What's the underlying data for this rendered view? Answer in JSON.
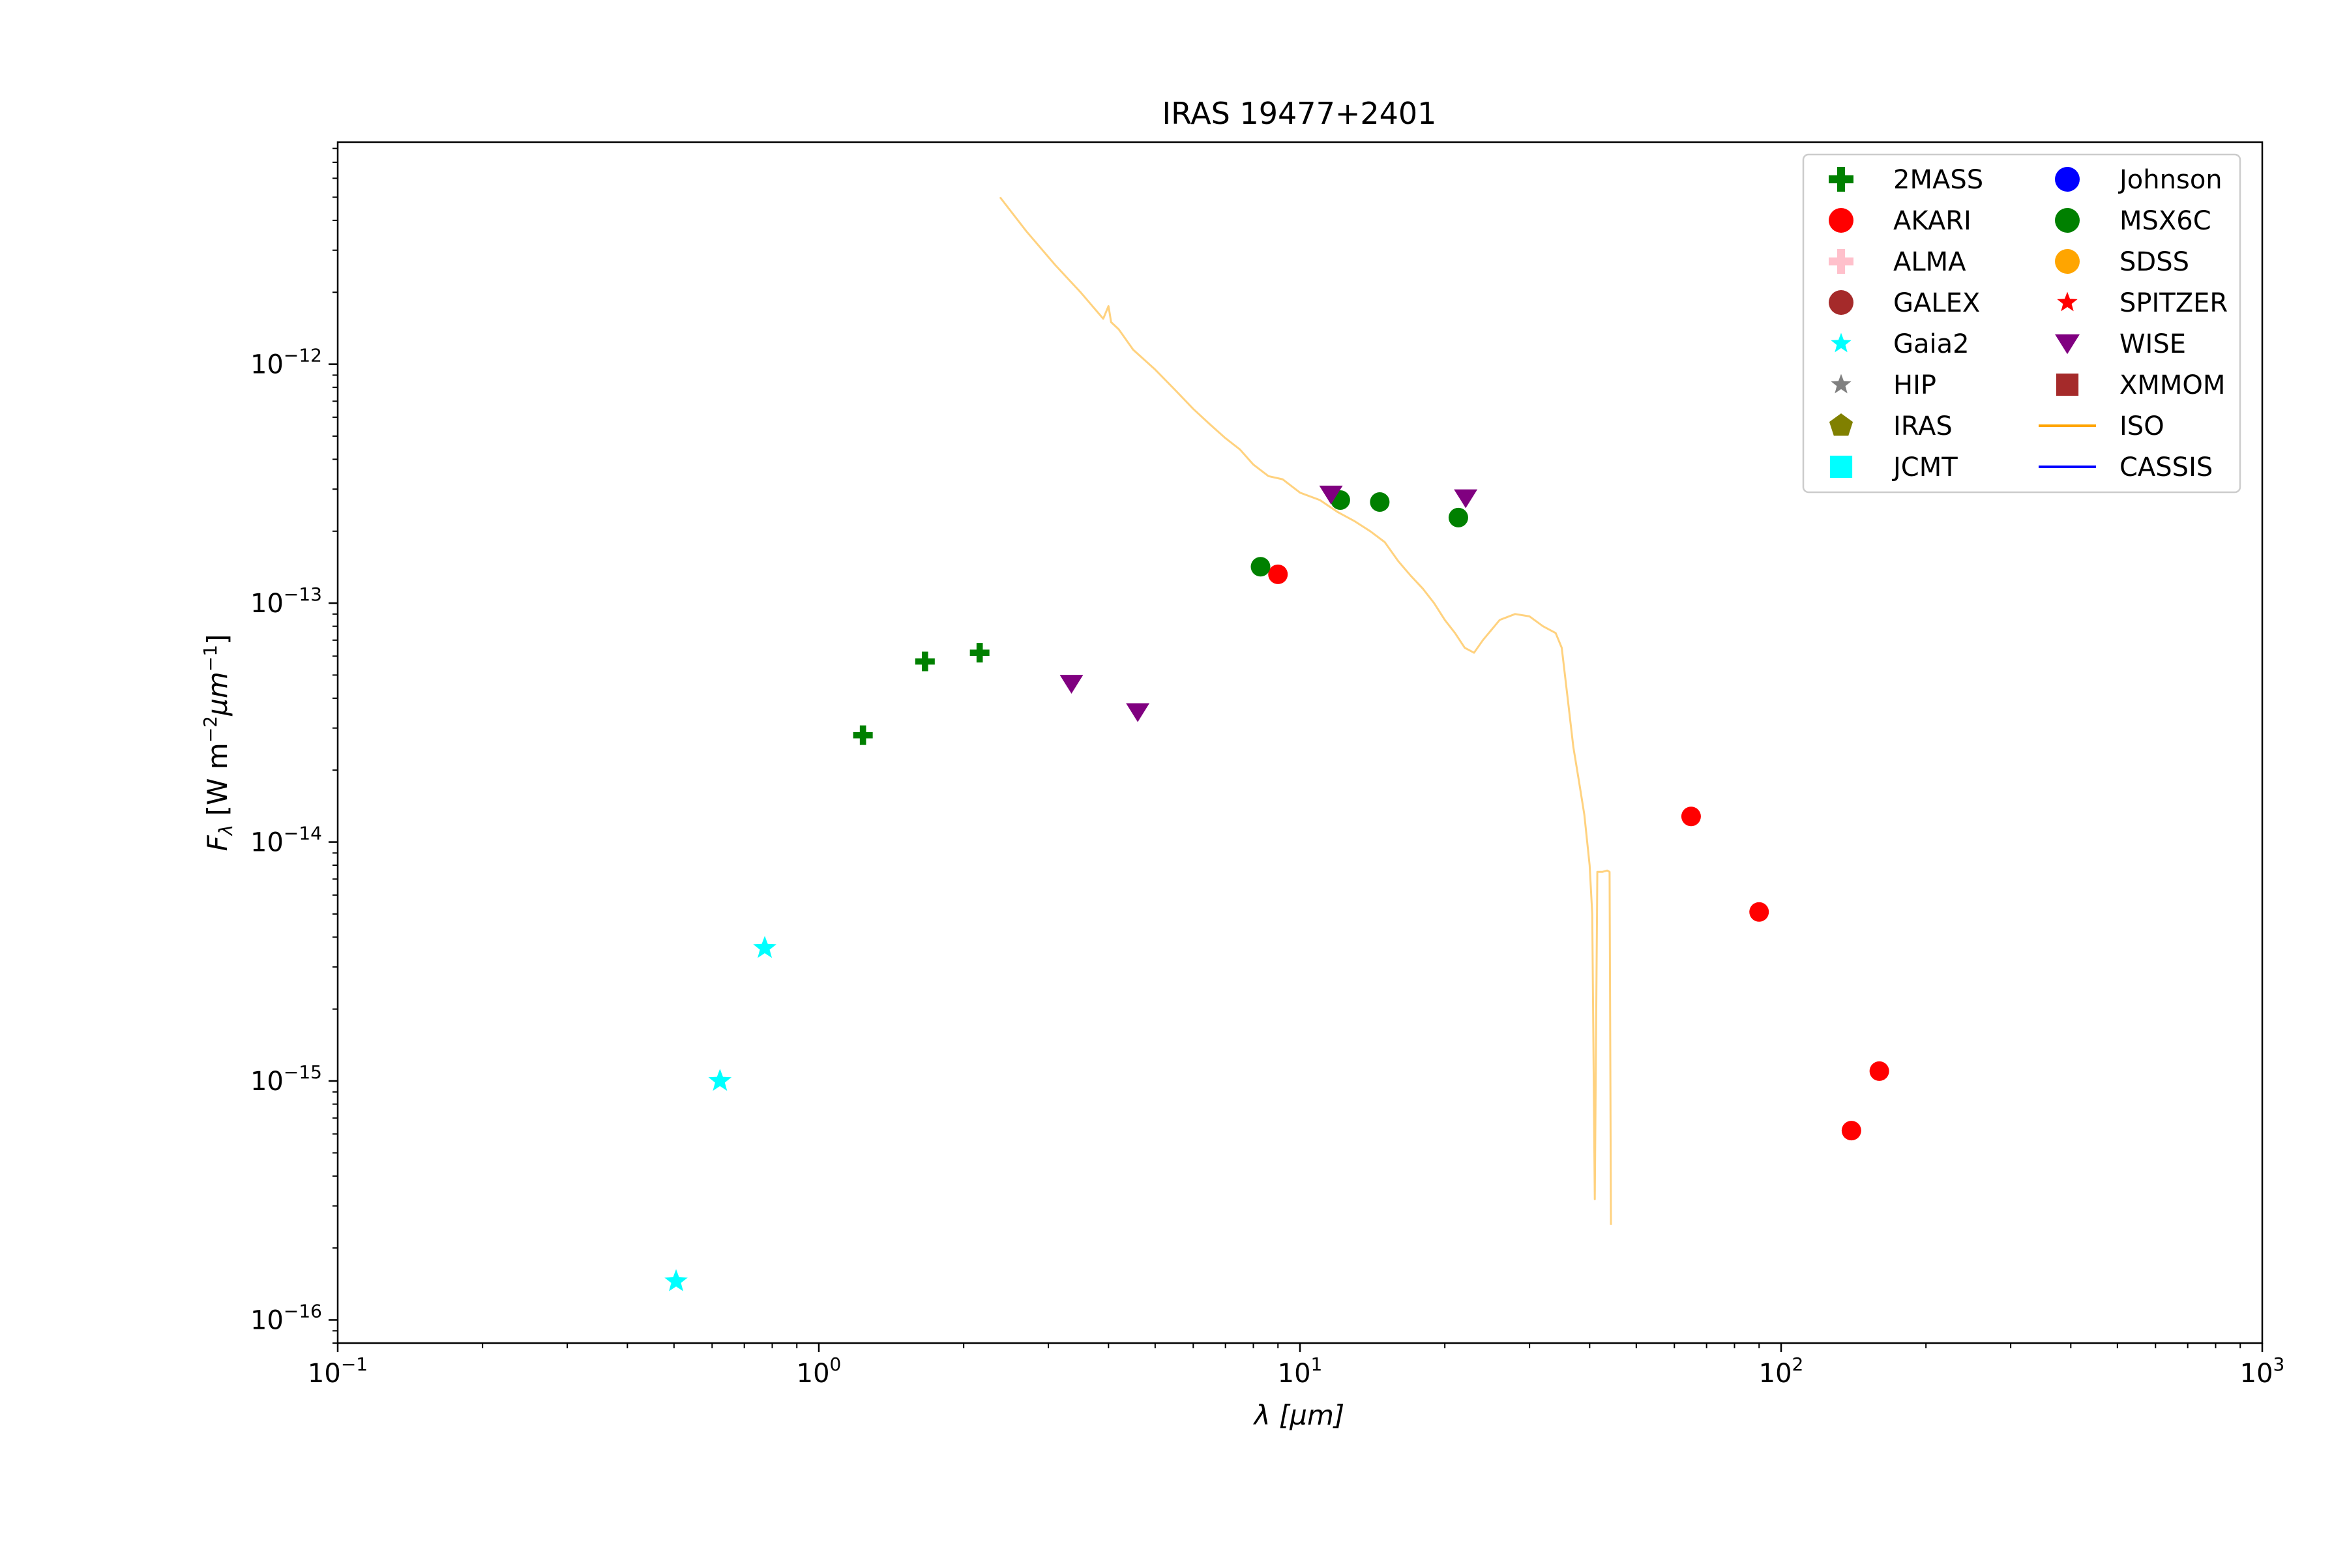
{
  "chart_data": {
    "type": "scatter",
    "title": "IRAS 19477+2401",
    "xlabel": {
      "main": "λ [",
      "unit": "μm",
      "close": "]"
    },
    "ylabel": {
      "main": "F",
      "sub": "λ",
      "unit": " [W m",
      "exp1": "−2",
      "mid": "μm",
      "exp2": "−1",
      "close": "]"
    },
    "xscale": "log",
    "yscale": "log",
    "xlim": [
      0.1,
      1000
    ],
    "ylim": [
      8e-17,
      8.5e-12
    ],
    "x_ticks": [
      {
        "value": 0.1,
        "base": "10",
        "exp": "−1"
      },
      {
        "value": 1,
        "base": "10",
        "exp": "0"
      },
      {
        "value": 10,
        "base": "10",
        "exp": "1"
      },
      {
        "value": 100,
        "base": "10",
        "exp": "2"
      },
      {
        "value": 1000,
        "base": "10",
        "exp": "3"
      }
    ],
    "y_ticks": [
      {
        "value": 1e-16,
        "base": "10",
        "exp": "−16"
      },
      {
        "value": 1e-15,
        "base": "10",
        "exp": "−15"
      },
      {
        "value": 1e-14,
        "base": "10",
        "exp": "−14"
      },
      {
        "value": 1e-13,
        "base": "10",
        "exp": "−13"
      },
      {
        "value": 1e-12,
        "base": "10",
        "exp": "−12"
      }
    ],
    "legend_position": "top-right",
    "legend_columns": 2,
    "legend": [
      {
        "name": "2MASS",
        "marker": "plus",
        "color": "#008000"
      },
      {
        "name": "AKARI",
        "marker": "circle",
        "color": "#ff0000"
      },
      {
        "name": "ALMA",
        "marker": "plus",
        "color": "#ffc0cb"
      },
      {
        "name": "GALEX",
        "marker": "circle",
        "color": "#a52a2a"
      },
      {
        "name": "Gaia2",
        "marker": "star",
        "color": "#00ffff"
      },
      {
        "name": "HIP",
        "marker": "star",
        "color": "#808080"
      },
      {
        "name": "IRAS",
        "marker": "pentagon",
        "color": "#808000"
      },
      {
        "name": "JCMT",
        "marker": "square",
        "color": "#00ffff"
      },
      {
        "name": "Johnson",
        "marker": "circle",
        "color": "#0000ff"
      },
      {
        "name": "MSX6C",
        "marker": "circle",
        "color": "#008000"
      },
      {
        "name": "SDSS",
        "marker": "circle",
        "color": "#ffa500"
      },
      {
        "name": "SPITZER",
        "marker": "star",
        "color": "#ff0000"
      },
      {
        "name": "WISE",
        "marker": "triangle-down",
        "color": "#800080"
      },
      {
        "name": "XMMOM",
        "marker": "square",
        "color": "#a52a2a"
      },
      {
        "name": "ISO",
        "marker": "line",
        "color": "#ffa500"
      },
      {
        "name": "CASSIS",
        "marker": "line",
        "color": "#0000ff"
      }
    ],
    "series": [
      {
        "name": "2MASS",
        "marker": "plus",
        "color": "#008000",
        "points": [
          [
            1.235,
            2.8e-14
          ],
          [
            1.662,
            5.7e-14
          ],
          [
            2.159,
            6.2e-14
          ]
        ]
      },
      {
        "name": "AKARI",
        "marker": "circle",
        "color": "#ff0000",
        "points": [
          [
            9.0,
            1.32e-13
          ],
          [
            65,
            1.28e-14
          ],
          [
            90,
            5.1e-15
          ],
          [
            140,
            6.2e-16
          ],
          [
            160,
            1.1e-15
          ]
        ]
      },
      {
        "name": "Gaia2",
        "marker": "star",
        "color": "#00ffff",
        "points": [
          [
            0.505,
            1.45e-16
          ],
          [
            0.623,
            1e-15
          ],
          [
            0.772,
            3.6e-15
          ]
        ]
      },
      {
        "name": "MSX6C",
        "marker": "circle",
        "color": "#008000",
        "points": [
          [
            8.28,
            1.42e-13
          ],
          [
            12.13,
            2.7e-13
          ],
          [
            14.65,
            2.65e-13
          ],
          [
            21.34,
            2.28e-13
          ]
        ]
      },
      {
        "name": "WISE",
        "marker": "triangle-down",
        "color": "#800080",
        "points": [
          [
            3.35,
            4.6e-14
          ],
          [
            4.6,
            3.5e-14
          ],
          [
            11.6,
            2.85e-13
          ],
          [
            22.1,
            2.75e-13
          ]
        ]
      }
    ],
    "lines": [
      {
        "name": "ISO",
        "color": "#ffa500",
        "opacity": 0.5,
        "points": [
          [
            2.38,
            5e-12
          ],
          [
            2.7,
            3.6e-12
          ],
          [
            3.1,
            2.6e-12
          ],
          [
            3.5,
            2e-12
          ],
          [
            3.9,
            1.55e-12
          ],
          [
            4.0,
            1.75e-12
          ],
          [
            4.05,
            1.5e-12
          ],
          [
            4.2,
            1.4e-12
          ],
          [
            4.5,
            1.15e-12
          ],
          [
            5.0,
            9.5e-13
          ],
          [
            5.5,
            7.8e-13
          ],
          [
            6.0,
            6.5e-13
          ],
          [
            6.5,
            5.6e-13
          ],
          [
            7.0,
            4.9e-13
          ],
          [
            7.5,
            4.4e-13
          ],
          [
            8.0,
            3.8e-13
          ],
          [
            8.6,
            3.4e-13
          ],
          [
            9.2,
            3.3e-13
          ],
          [
            10.0,
            2.9e-13
          ],
          [
            11.0,
            2.7e-13
          ],
          [
            12.0,
            2.4e-13
          ],
          [
            13.0,
            2.2e-13
          ],
          [
            14.0,
            2e-13
          ],
          [
            15.0,
            1.8e-13
          ],
          [
            16.0,
            1.5e-13
          ],
          [
            17.0,
            1.3e-13
          ],
          [
            18.0,
            1.15e-13
          ],
          [
            19.0,
            1e-13
          ],
          [
            20.0,
            8.5e-14
          ],
          [
            21.0,
            7.5e-14
          ],
          [
            22.0,
            6.5e-14
          ],
          [
            23.0,
            6.2e-14
          ],
          [
            24.0,
            7e-14
          ],
          [
            26.0,
            8.5e-14
          ],
          [
            28.0,
            9e-14
          ],
          [
            30.0,
            8.8e-14
          ],
          [
            32.0,
            8e-14
          ],
          [
            34.0,
            7.5e-14
          ],
          [
            35.0,
            6.5e-14
          ],
          [
            36.0,
            4e-14
          ],
          [
            37.0,
            2.5e-14
          ],
          [
            38.0,
            1.8e-14
          ],
          [
            39.0,
            1.3e-14
          ],
          [
            40.0,
            8e-15
          ],
          [
            40.5,
            5e-15
          ],
          [
            41.0,
            3.2e-16
          ],
          [
            41.5,
            7.5e-15
          ],
          [
            42.5,
            7.5e-15
          ],
          [
            43.5,
            7.6e-15
          ],
          [
            44.0,
            7.5e-15
          ],
          [
            44.3,
            2.5e-16
          ]
        ]
      }
    ]
  }
}
